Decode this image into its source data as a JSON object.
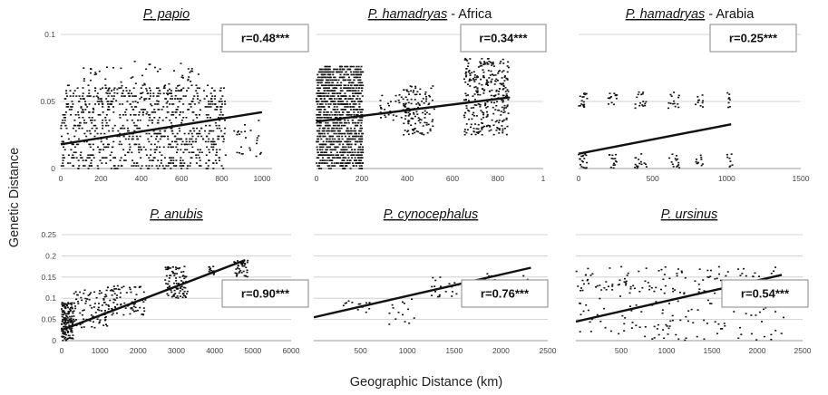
{
  "figure": {
    "xlabel": "Geographic Distance (km)",
    "ylabel": "Genetic Distance"
  },
  "colors": {
    "points": "#111111",
    "trend": "#111111",
    "grid": "#c8c8c8",
    "box": "#9a9a9a"
  },
  "chart_data": [
    {
      "type": "scatter",
      "title_italic": "P. papio",
      "title_rest": "",
      "annotation": "r=0.48***",
      "x_ticks": [
        "0",
        "200",
        "400",
        "600",
        "800",
        "1000"
      ],
      "y_ticks": [
        "0",
        "0.05",
        "0.1"
      ],
      "xlim": [
        0,
        1050
      ],
      "ylim": [
        0,
        0.1
      ],
      "grid": true,
      "trend": {
        "x": [
          0,
          1000
        ],
        "y": [
          0.018,
          0.042
        ]
      },
      "clusters": [
        {
          "x": [
            0,
            820
          ],
          "y": [
            0,
            0.062
          ],
          "n": 900,
          "rows": 0.002
        },
        {
          "x": [
            100,
            700
          ],
          "y": [
            0.04,
            0.08
          ],
          "n": 90
        },
        {
          "x": [
            860,
            1010
          ],
          "y": [
            0.008,
            0.04
          ],
          "n": 25
        }
      ]
    },
    {
      "type": "scatter",
      "title_italic": "P. hamadryas",
      "title_rest": " - Africa",
      "annotation": "r=0.34***",
      "x_ticks": [
        "0",
        "200",
        "400",
        "600",
        "800",
        "1"
      ],
      "y_ticks": [],
      "xlim": [
        0,
        1000
      ],
      "ylim": [
        0,
        0.1
      ],
      "grid": true,
      "trend": {
        "x": [
          0,
          850
        ],
        "y": [
          0.035,
          0.053
        ]
      },
      "clusters": [
        {
          "x": [
            0,
            205
          ],
          "y": [
            0,
            0.076
          ],
          "n": 1100,
          "rows": 0.002
        },
        {
          "x": [
            380,
            520
          ],
          "y": [
            0.025,
            0.062
          ],
          "n": 120
        },
        {
          "x": [
            650,
            850
          ],
          "y": [
            0.025,
            0.082
          ],
          "n": 300
        },
        {
          "x": [
            280,
            420
          ],
          "y": [
            0.035,
            0.055
          ],
          "n": 40
        }
      ]
    },
    {
      "type": "scatter",
      "title_italic": "P. hamadryas",
      "title_rest": " - Arabia",
      "annotation": "r=0.25***",
      "x_ticks": [
        "0",
        "500",
        "1000",
        "1500"
      ],
      "y_ticks": [],
      "xlim": [
        0,
        1500
      ],
      "ylim": [
        0,
        0.1
      ],
      "grid": true,
      "trend": {
        "x": [
          0,
          1030
        ],
        "y": [
          0.011,
          0.033
        ]
      },
      "clusters": [
        {
          "x": [
            0,
            60
          ],
          "y": [
            0.0,
            0.011
          ],
          "n": 20
        },
        {
          "x": [
            0,
            60
          ],
          "y": [
            0.045,
            0.057
          ],
          "n": 20
        },
        {
          "x": [
            200,
            260
          ],
          "y": [
            0.0,
            0.011
          ],
          "n": 14
        },
        {
          "x": [
            200,
            260
          ],
          "y": [
            0.045,
            0.057
          ],
          "n": 14
        },
        {
          "x": [
            380,
            460
          ],
          "y": [
            0.0,
            0.011
          ],
          "n": 16
        },
        {
          "x": [
            380,
            460
          ],
          "y": [
            0.045,
            0.057
          ],
          "n": 16
        },
        {
          "x": [
            600,
            680
          ],
          "y": [
            0.0,
            0.011
          ],
          "n": 14
        },
        {
          "x": [
            600,
            680
          ],
          "y": [
            0.045,
            0.057
          ],
          "n": 14
        },
        {
          "x": [
            790,
            840
          ],
          "y": [
            0.0,
            0.011
          ],
          "n": 10
        },
        {
          "x": [
            790,
            840
          ],
          "y": [
            0.045,
            0.057
          ],
          "n": 10
        },
        {
          "x": [
            1000,
            1040
          ],
          "y": [
            0.0,
            0.011
          ],
          "n": 8
        },
        {
          "x": [
            1000,
            1040
          ],
          "y": [
            0.045,
            0.057
          ],
          "n": 8
        }
      ]
    },
    {
      "type": "scatter",
      "title_italic": "P. anubis",
      "title_rest": "",
      "annotation": "r=0.90***",
      "x_ticks": [
        "0",
        "1000",
        "2000",
        "3000",
        "4000",
        "5000",
        "6000"
      ],
      "y_ticks": [
        "0",
        "0.05",
        "0.1",
        "0.15",
        "0.2",
        "0.25"
      ],
      "xlim": [
        0,
        6000
      ],
      "ylim": [
        0,
        0.25
      ],
      "grid": true,
      "trend": {
        "x": [
          0,
          4800
        ],
        "y": [
          0.025,
          0.19
        ]
      },
      "clusters": [
        {
          "x": [
            0,
            300
          ],
          "y": [
            0,
            0.09
          ],
          "n": 160
        },
        {
          "x": [
            300,
            1200
          ],
          "y": [
            0.03,
            0.12
          ],
          "n": 90
        },
        {
          "x": [
            1200,
            2200
          ],
          "y": [
            0.06,
            0.13
          ],
          "n": 80
        },
        {
          "x": [
            2700,
            3300
          ],
          "y": [
            0.1,
            0.175
          ],
          "n": 90
        },
        {
          "x": [
            3800,
            4000
          ],
          "y": [
            0.155,
            0.175
          ],
          "n": 15
        },
        {
          "x": [
            4500,
            4900
          ],
          "y": [
            0.15,
            0.19
          ],
          "n": 40
        }
      ]
    },
    {
      "type": "scatter",
      "title_italic": "P. cynocephalus",
      "title_rest": "",
      "annotation": "r=0.76***",
      "x_ticks": [
        "500",
        "1000",
        "1500",
        "2000",
        "2500"
      ],
      "y_ticks": [],
      "xlim": [
        0,
        2500
      ],
      "ylim": [
        0,
        0.25
      ],
      "grid": true,
      "trend": {
        "x": [
          0,
          2320
        ],
        "y": [
          0.055,
          0.172
        ]
      },
      "clusters": [
        {
          "x": [
            300,
            600
          ],
          "y": [
            0.06,
            0.1
          ],
          "n": 14
        },
        {
          "x": [
            800,
            1100
          ],
          "y": [
            0.03,
            0.11
          ],
          "n": 14
        },
        {
          "x": [
            1250,
            1550
          ],
          "y": [
            0.1,
            0.15
          ],
          "n": 20
        },
        {
          "x": [
            1800,
            1950
          ],
          "y": [
            0.13,
            0.16
          ],
          "n": 6
        },
        {
          "x": [
            2200,
            2330
          ],
          "y": [
            0.12,
            0.155
          ],
          "n": 14
        }
      ]
    },
    {
      "type": "scatter",
      "title_italic": "P. ursinus",
      "title_rest": "",
      "annotation": "r=0.54***",
      "x_ticks": [
        "500",
        "1000",
        "1500",
        "2000",
        "2500"
      ],
      "y_ticks": [],
      "xlim": [
        0,
        2500
      ],
      "ylim": [
        0,
        0.25
      ],
      "grid": true,
      "trend": {
        "x": [
          0,
          2270
        ],
        "y": [
          0.045,
          0.155
        ]
      },
      "clusters": [
        {
          "x": [
            0,
            2300
          ],
          "y": [
            0.11,
            0.175
          ],
          "n": 130
        },
        {
          "x": [
            0,
            2300
          ],
          "y": [
            0.0,
            0.11
          ],
          "n": 110
        }
      ]
    }
  ]
}
